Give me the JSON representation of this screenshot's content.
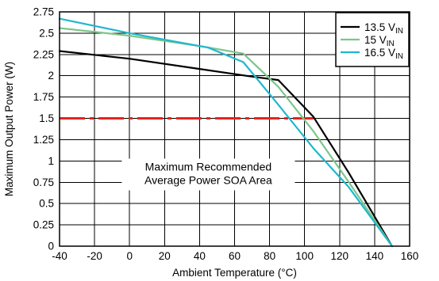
{
  "chart_data": {
    "type": "line",
    "xlabel": "Ambient Temperature (°C)",
    "ylabel": "Maximum Output Power (W)",
    "xlim": [
      -40,
      160
    ],
    "ylim": [
      0,
      2.75
    ],
    "xticks": [
      -40,
      -20,
      0,
      20,
      40,
      60,
      80,
      100,
      120,
      140,
      160
    ],
    "xtick_labels": [
      "-40",
      "-20",
      "0",
      "20",
      "40",
      "60",
      "80",
      "100",
      "120",
      "140",
      "160"
    ],
    "yticks": [
      0,
      0.25,
      0.5,
      0.75,
      1,
      1.25,
      1.5,
      1.75,
      2,
      2.25,
      2.5,
      2.75
    ],
    "ytick_labels": [
      "0",
      "0.25",
      "0.5",
      "0.75",
      "1",
      "1.25",
      "1.5",
      "1.75",
      "2",
      "2.25",
      "2.5",
      "2.75"
    ],
    "grid": true,
    "legend_position": "top-right",
    "series": [
      {
        "name": "13.5 V",
        "name_sub": "IN",
        "color": "#000000",
        "points": [
          [
            -40,
            2.29
          ],
          [
            0,
            2.2
          ],
          [
            40,
            2.08
          ],
          [
            70,
            1.99
          ],
          [
            85,
            1.95
          ],
          [
            105,
            1.52
          ],
          [
            125,
            0.87
          ],
          [
            150,
            0.0
          ]
        ]
      },
      {
        "name": "15 V",
        "name_sub": "IN",
        "color": "#7dc58c",
        "points": [
          [
            -40,
            2.56
          ],
          [
            0,
            2.47
          ],
          [
            40,
            2.35
          ],
          [
            65,
            2.26
          ],
          [
            85,
            1.87
          ],
          [
            105,
            1.35
          ],
          [
            125,
            0.76
          ],
          [
            150,
            0.0
          ]
        ]
      },
      {
        "name": "16.5 V",
        "name_sub": "IN",
        "color": "#1fb8cd",
        "points": [
          [
            -40,
            2.67
          ],
          [
            0,
            2.5
          ],
          [
            45,
            2.33
          ],
          [
            65,
            2.16
          ],
          [
            85,
            1.66
          ],
          [
            105,
            1.15
          ],
          [
            125,
            0.7
          ],
          [
            150,
            0.0
          ]
        ]
      }
    ],
    "reference_line": {
      "y": 1.5,
      "x_start": -40,
      "x_end": 105,
      "color": "#e8231c",
      "style": "dash-dot"
    },
    "annotation": {
      "lines": [
        "Maximum Recommended",
        "Average Power SOA Area"
      ],
      "x": 45,
      "y_top": 0.99
    }
  }
}
